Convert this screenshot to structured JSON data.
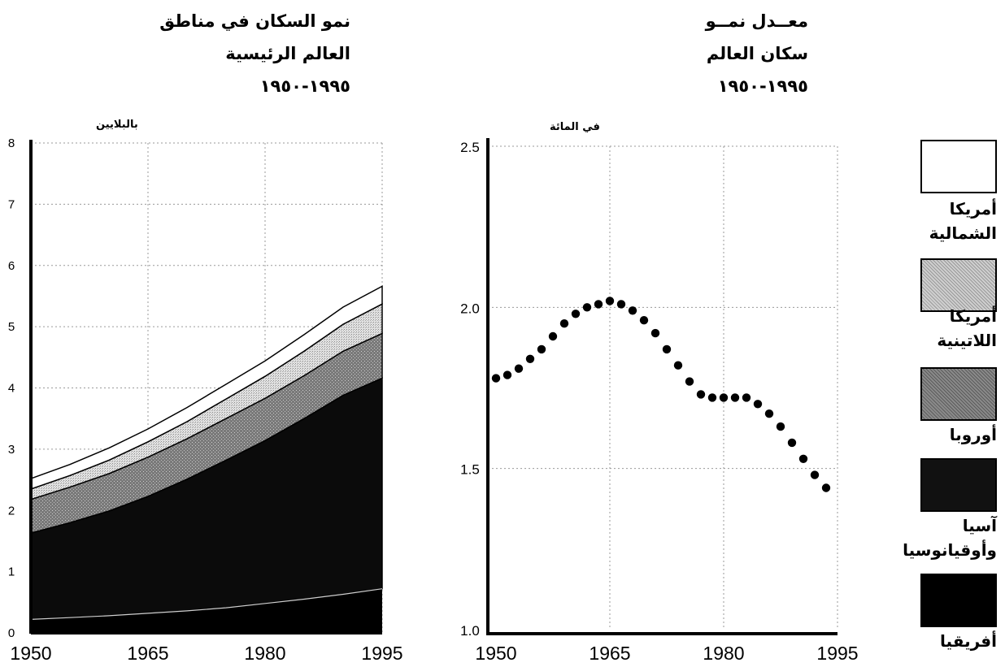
{
  "chart_data": [
    {
      "type": "area",
      "title": "نمو السكان في مناطق\nالعالم الرئيسية\n١٩٩٥-١٩٥٠",
      "ylabel": "بالبلايين",
      "xlabel": "",
      "x": [
        1950,
        1955,
        1960,
        1965,
        1970,
        1975,
        1980,
        1985,
        1990,
        1995
      ],
      "xticks": [
        "1950",
        "1965",
        "1980",
        "1995"
      ],
      "yticks": [
        "0",
        "1",
        "2",
        "3",
        "4",
        "5",
        "6",
        "7",
        "8"
      ],
      "ylim": [
        0,
        8
      ],
      "stacked": true,
      "grid": true,
      "series": [
        {
          "name": "أفريقيا",
          "values": [
            0.22,
            0.25,
            0.28,
            0.32,
            0.36,
            0.41,
            0.48,
            0.55,
            0.63,
            0.72
          ]
        },
        {
          "name": "آسيا وأوقيانوسيا",
          "values": [
            1.41,
            1.55,
            1.71,
            1.91,
            2.15,
            2.41,
            2.66,
            2.95,
            3.25,
            3.44
          ]
        },
        {
          "name": "أوروبا",
          "values": [
            0.55,
            0.58,
            0.61,
            0.64,
            0.66,
            0.68,
            0.69,
            0.7,
            0.72,
            0.73
          ]
        },
        {
          "name": "أمريكا اللاتينية",
          "values": [
            0.17,
            0.19,
            0.22,
            0.25,
            0.28,
            0.32,
            0.36,
            0.4,
            0.44,
            0.48
          ]
        },
        {
          "name": "أمريكا الشمالية",
          "values": [
            0.17,
            0.18,
            0.2,
            0.21,
            0.23,
            0.24,
            0.25,
            0.27,
            0.28,
            0.29
          ]
        }
      ]
    },
    {
      "type": "scatter",
      "title": "معــدل نمــو\nسكان العالم\n١٩٩٥-١٩٥٠",
      "ylabel": "في المائة",
      "xlabel": "",
      "xticks": [
        "1950",
        "1965",
        "1980",
        "1995"
      ],
      "yticks": [
        "1.0",
        "1.5",
        "2.0",
        "2.5"
      ],
      "xlim": [
        1950,
        1995
      ],
      "ylim": [
        1.0,
        2.5
      ],
      "grid": true,
      "series": [
        {
          "name": "",
          "x": [
            1950,
            1951.5,
            1953,
            1954.5,
            1956,
            1957.5,
            1959,
            1960.5,
            1962,
            1963.5,
            1965,
            1966.5,
            1968,
            1969.5,
            1971,
            1972.5,
            1974,
            1975.5,
            1977,
            1978.5,
            1980,
            1981.5,
            1983,
            1984.5,
            1986,
            1987.5,
            1989,
            1990.5,
            1992,
            1993.5
          ],
          "y": [
            1.78,
            1.79,
            1.81,
            1.84,
            1.87,
            1.91,
            1.95,
            1.98,
            2.0,
            2.01,
            2.02,
            2.01,
            1.99,
            1.96,
            1.92,
            1.87,
            1.82,
            1.77,
            1.73,
            1.72,
            1.72,
            1.72,
            1.72,
            1.7,
            1.67,
            1.63,
            1.58,
            1.53,
            1.48,
            1.44
          ]
        }
      ]
    }
  ],
  "legend": {
    "placement": "right",
    "items": [
      {
        "label": "أمريكا\nالشمالية",
        "color": "#ffffff"
      },
      {
        "label": "أمريكا\nاللاتينية",
        "color": "#c8c8c8"
      },
      {
        "label": "أوروبا",
        "color": "#8a8a8a"
      },
      {
        "label": "آسيا\nوأوقيانوسيا",
        "color": "#111111"
      },
      {
        "label": "أفريقيا",
        "color": "#000000"
      }
    ]
  },
  "colors": {
    "africa": "#000000",
    "asia": "#111111",
    "europe": "#8a8a8a",
    "latin_america": "#c8c8c8",
    "north_america": "#ffffff",
    "grid": "#9a9a9a",
    "axis": "#000000"
  }
}
